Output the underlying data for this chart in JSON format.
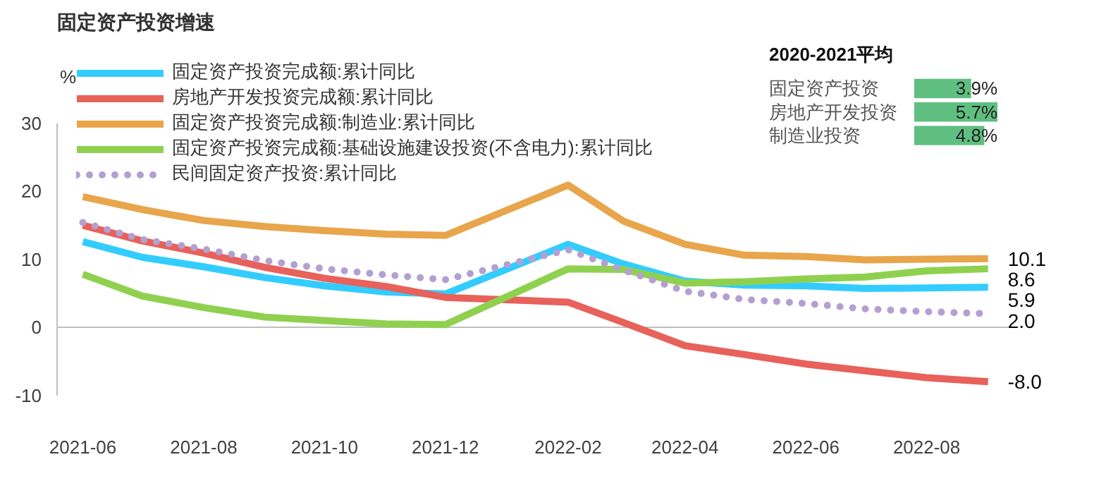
{
  "chart_data": [
    {
      "type": "line",
      "title": "固定资产投资增速",
      "ylabel": "%",
      "x": [
        "2021-06",
        "2021-07",
        "2021-08",
        "2021-09",
        "2021-10",
        "2021-11",
        "2021-12",
        "2022-02",
        "2022-03",
        "2022-04",
        "2022-05",
        "2022-06",
        "2022-07",
        "2022-08",
        "2022-09"
      ],
      "xlim": [
        "2021-05-19",
        "2022-09-15"
      ],
      "xticks": [
        "2021-06",
        "2021-08",
        "2021-10",
        "2021-12",
        "2022-02",
        "2022-04",
        "2022-06",
        "2022-08"
      ],
      "ylim": [
        -10,
        30
      ],
      "yticks": [
        -10,
        0,
        10,
        20,
        30
      ],
      "grid": false,
      "legend": "top left",
      "marker": "none",
      "ref_lines": [
        {
          "axis": "y",
          "value": 0,
          "color": "#bfbfbf"
        }
      ],
      "series": [
        {
          "name": "固定资产投资完成额:累计同比",
          "color": "#33ccff",
          "line_style": "solid",
          "values": [
            12.6,
            10.3,
            8.9,
            7.3,
            6.1,
            5.2,
            4.9,
            12.2,
            9.3,
            6.8,
            6.2,
            6.1,
            5.7,
            5.8,
            5.9
          ],
          "value_labels": [
            null,
            null,
            null,
            null,
            null,
            null,
            null,
            null,
            null,
            null,
            null,
            null,
            null,
            null,
            "5.9"
          ]
        },
        {
          "name": "房地产开发投资完成额:累计同比",
          "color": "#e8615a",
          "line_style": "solid",
          "values": [
            15.0,
            12.7,
            10.9,
            8.8,
            7.2,
            6.0,
            4.4,
            3.7,
            0.7,
            -2.7,
            -4.0,
            -5.4,
            -6.4,
            -7.4,
            -8.0
          ],
          "value_labels": [
            null,
            null,
            null,
            null,
            null,
            null,
            null,
            null,
            null,
            null,
            null,
            null,
            null,
            null,
            "-8.0"
          ]
        },
        {
          "name": "固定资产投资完成额:制造业:累计同比",
          "color": "#e8a54b",
          "line_style": "solid",
          "values": [
            19.2,
            17.3,
            15.7,
            14.8,
            14.2,
            13.7,
            13.5,
            20.9,
            15.6,
            12.2,
            10.6,
            10.4,
            9.9,
            10.0,
            10.1
          ],
          "value_labels": [
            null,
            null,
            null,
            null,
            null,
            null,
            null,
            null,
            null,
            null,
            null,
            null,
            null,
            null,
            "10.1"
          ]
        },
        {
          "name": "固定资产投资完成额:基础设施建设投资(不含电力):累计同比",
          "color": "#8fd14f",
          "line_style": "solid",
          "values": [
            7.8,
            4.6,
            2.9,
            1.5,
            1.0,
            0.5,
            0.4,
            8.6,
            8.5,
            6.5,
            6.7,
            7.1,
            7.4,
            8.3,
            8.6
          ],
          "value_labels": [
            null,
            null,
            null,
            null,
            null,
            null,
            null,
            null,
            null,
            null,
            null,
            null,
            null,
            null,
            "8.6"
          ]
        },
        {
          "name": "民间固定资产投资:累计同比",
          "color": "#b4a0d0",
          "line_style": "dotted",
          "values": [
            15.4,
            12.9,
            11.5,
            9.8,
            8.6,
            7.7,
            7.0,
            11.4,
            8.4,
            5.3,
            4.1,
            3.5,
            2.7,
            2.3,
            2.0
          ],
          "value_labels": [
            null,
            null,
            null,
            null,
            null,
            null,
            null,
            null,
            null,
            null,
            null,
            null,
            null,
            null,
            "2.0"
          ]
        }
      ]
    },
    {
      "type": "bar",
      "orientation": "horizontal",
      "title": "2020-2021平均",
      "categories": [
        "固定资产投资",
        "房地产开发投资",
        "制造业投资"
      ],
      "values": [
        3.9,
        5.7,
        4.8
      ],
      "color": "#5fbf80",
      "value_labels": [
        "3.9%",
        "5.7%",
        "4.8%"
      ],
      "tick_labels": "y"
    }
  ]
}
